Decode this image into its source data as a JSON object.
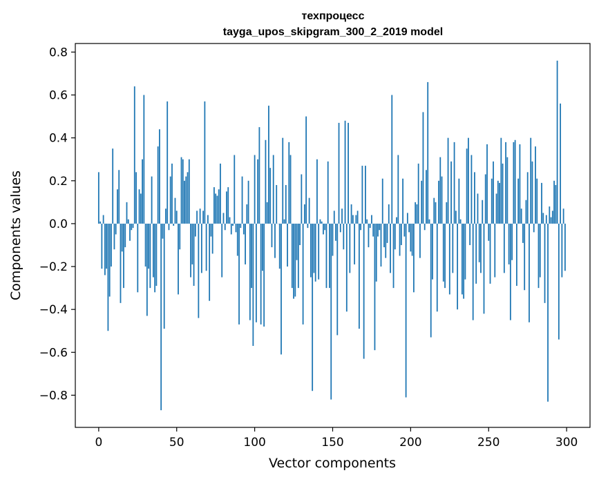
{
  "chart_data": {
    "type": "bar",
    "title": "техпроцесс",
    "subtitle": "tayga_upos_skipgram_300_2_2019 model",
    "xlabel": "Vector components",
    "ylabel": "Components values",
    "xlim": [
      -15,
      315
    ],
    "ylim": [
      -0.95,
      0.84
    ],
    "xticks": [
      0,
      50,
      100,
      150,
      200,
      250,
      300
    ],
    "yticks": [
      -0.8,
      -0.6,
      -0.4,
      -0.2,
      0.0,
      0.2,
      0.4,
      0.6,
      0.8
    ],
    "xtick_labels": [
      "0",
      "50",
      "100",
      "150",
      "200",
      "250",
      "300"
    ],
    "ytick_labels": [
      "−0.8",
      "−0.6",
      "−0.4",
      "−0.2",
      "0.0",
      "0.2",
      "0.4",
      "0.6",
      "0.8"
    ],
    "grid": false,
    "bar_color": "#1f77b4",
    "x": [
      0,
      1,
      2,
      3,
      4,
      5,
      6,
      7,
      8,
      9,
      10,
      11,
      12,
      13,
      14,
      15,
      16,
      17,
      18,
      19,
      20,
      21,
      22,
      23,
      24,
      25,
      26,
      27,
      28,
      29,
      30,
      31,
      32,
      33,
      34,
      35,
      36,
      37,
      38,
      39,
      40,
      41,
      42,
      43,
      44,
      45,
      46,
      47,
      48,
      49,
      50,
      51,
      52,
      53,
      54,
      55,
      56,
      57,
      58,
      59,
      60,
      61,
      62,
      63,
      64,
      65,
      66,
      67,
      68,
      69,
      70,
      71,
      72,
      73,
      74,
      75,
      76,
      77,
      78,
      79,
      80,
      81,
      82,
      83,
      84,
      85,
      86,
      87,
      88,
      89,
      90,
      91,
      92,
      93,
      94,
      95,
      96,
      97,
      98,
      99,
      100,
      101,
      102,
      103,
      104,
      105,
      106,
      107,
      108,
      109,
      110,
      111,
      112,
      113,
      114,
      115,
      116,
      117,
      118,
      119,
      120,
      121,
      122,
      123,
      124,
      125,
      126,
      127,
      128,
      129,
      130,
      131,
      132,
      133,
      134,
      135,
      136,
      137,
      138,
      139,
      140,
      141,
      142,
      143,
      144,
      145,
      146,
      147,
      148,
      149,
      150,
      151,
      152,
      153,
      154,
      155,
      156,
      157,
      158,
      159,
      160,
      161,
      162,
      163,
      164,
      165,
      166,
      167,
      168,
      169,
      170,
      171,
      172,
      173,
      174,
      175,
      176,
      177,
      178,
      179,
      180,
      181,
      182,
      183,
      184,
      185,
      186,
      187,
      188,
      189,
      190,
      191,
      192,
      193,
      194,
      195,
      196,
      197,
      198,
      199,
      200,
      201,
      202,
      203,
      204,
      205,
      206,
      207,
      208,
      209,
      210,
      211,
      212,
      213,
      214,
      215,
      216,
      217,
      218,
      219,
      220,
      221,
      222,
      223,
      224,
      225,
      226,
      227,
      228,
      229,
      230,
      231,
      232,
      233,
      234,
      235,
      236,
      237,
      238,
      239,
      240,
      241,
      242,
      243,
      244,
      245,
      246,
      247,
      248,
      249,
      250,
      251,
      252,
      253,
      254,
      255,
      256,
      257,
      258,
      259,
      260,
      261,
      262,
      263,
      264,
      265,
      266,
      267,
      268,
      269,
      270,
      271,
      272,
      273,
      274,
      275,
      276,
      277,
      278,
      279,
      280,
      281,
      282,
      283,
      284,
      285,
      286,
      287,
      288,
      289,
      290,
      291,
      292,
      293,
      294,
      295,
      296,
      297,
      298,
      299
    ],
    "values": [
      0.24,
      0.01,
      -0.21,
      0.04,
      -0.24,
      -0.21,
      -0.5,
      -0.34,
      -0.2,
      0.35,
      -0.12,
      -0.05,
      0.16,
      0.25,
      -0.37,
      -0.13,
      -0.3,
      -0.11,
      0.1,
      0.02,
      -0.08,
      -0.03,
      -0.02,
      0.64,
      0.24,
      -0.32,
      0.16,
      0.14,
      0.3,
      0.6,
      -0.2,
      -0.43,
      -0.21,
      -0.3,
      0.22,
      -0.25,
      -0.32,
      -0.29,
      0.36,
      0.44,
      -0.87,
      -0.07,
      -0.49,
      0.07,
      0.57,
      -0.03,
      0.22,
      0.28,
      -0.01,
      0.12,
      0.06,
      -0.33,
      -0.12,
      0.31,
      0.3,
      0.2,
      0.22,
      0.24,
      0.3,
      -0.25,
      -0.19,
      -0.29,
      -0.06,
      0.06,
      -0.44,
      0.07,
      -0.23,
      0.06,
      0.57,
      -0.22,
      0.04,
      -0.36,
      -0.06,
      -0.14,
      0.17,
      0.14,
      0.13,
      0.16,
      0.28,
      -0.25,
      0.05,
      -0.03,
      0.15,
      0.17,
      0.03,
      -0.05,
      -0.01,
      0.32,
      -0.04,
      -0.15,
      -0.47,
      -0.02,
      0.22,
      -0.05,
      -0.19,
      0.09,
      0.2,
      -0.45,
      -0.3,
      -0.57,
      0.32,
      -0.46,
      0.3,
      0.45,
      -0.47,
      -0.22,
      -0.48,
      0.39,
      0.1,
      0.55,
      0.26,
      -0.11,
      0.32,
      -0.16,
      0.18,
      0.0,
      -0.21,
      -0.61,
      0.4,
      0.02,
      0.18,
      -0.2,
      0.38,
      0.32,
      -0.3,
      -0.35,
      -0.34,
      -0.17,
      -0.3,
      -0.1,
      0.23,
      -0.47,
      0.09,
      0.5,
      -0.02,
      0.12,
      -0.25,
      -0.78,
      -0.23,
      -0.27,
      0.3,
      -0.26,
      0.02,
      0.01,
      -0.05,
      -0.03,
      -0.3,
      0.29,
      -0.3,
      -0.82,
      -0.15,
      0.06,
      -0.08,
      -0.52,
      0.47,
      -0.04,
      0.07,
      -0.12,
      0.48,
      -0.41,
      0.47,
      -0.23,
      0.09,
      0.04,
      -0.19,
      0.04,
      0.06,
      -0.49,
      -0.03,
      0.27,
      -0.63,
      0.27,
      0.02,
      -0.11,
      -0.02,
      0.04,
      -0.06,
      -0.59,
      -0.27,
      -0.06,
      -0.03,
      -0.2,
      0.21,
      -0.11,
      -0.16,
      -0.09,
      0.09,
      -0.23,
      0.6,
      -0.3,
      -0.12,
      0.03,
      0.32,
      -0.15,
      -0.1,
      0.21,
      -0.06,
      -0.81,
      0.05,
      -0.04,
      -0.13,
      -0.15,
      -0.32,
      0.1,
      0.09,
      0.28,
      -0.16,
      0.2,
      0.52,
      -0.03,
      0.25,
      0.66,
      0.02,
      -0.53,
      -0.26,
      0.12,
      0.1,
      -0.41,
      0.2,
      0.31,
      0.22,
      -0.27,
      -0.3,
      0.1,
      0.4,
      -0.33,
      0.29,
      -0.23,
      0.38,
      0.06,
      -0.4,
      0.21,
      0.02,
      -0.33,
      -0.35,
      -0.26,
      0.35,
      0.4,
      -0.1,
      0.32,
      -0.45,
      0.24,
      -0.28,
      0.14,
      -0.18,
      -0.23,
      0.11,
      -0.42,
      0.23,
      0.37,
      -0.08,
      -0.28,
      0.21,
      0.29,
      -0.25,
      0.14,
      0.2,
      0.19,
      0.4,
      0.28,
      -0.23,
      0.38,
      0.31,
      -0.19,
      -0.45,
      -0.17,
      0.38,
      0.39,
      -0.29,
      0.21,
      0.37,
      0.07,
      -0.09,
      -0.31,
      0.11,
      0.24,
      -0.46,
      0.4,
      0.29,
      -0.04,
      0.36,
      0.21,
      -0.3,
      -0.25,
      0.19,
      0.05,
      -0.37,
      0.04,
      -0.83,
      0.08,
      0.03,
      0.06,
      0.2,
      0.18,
      0.76,
      -0.54,
      0.56,
      -0.25,
      0.07,
      -0.22
    ]
  }
}
